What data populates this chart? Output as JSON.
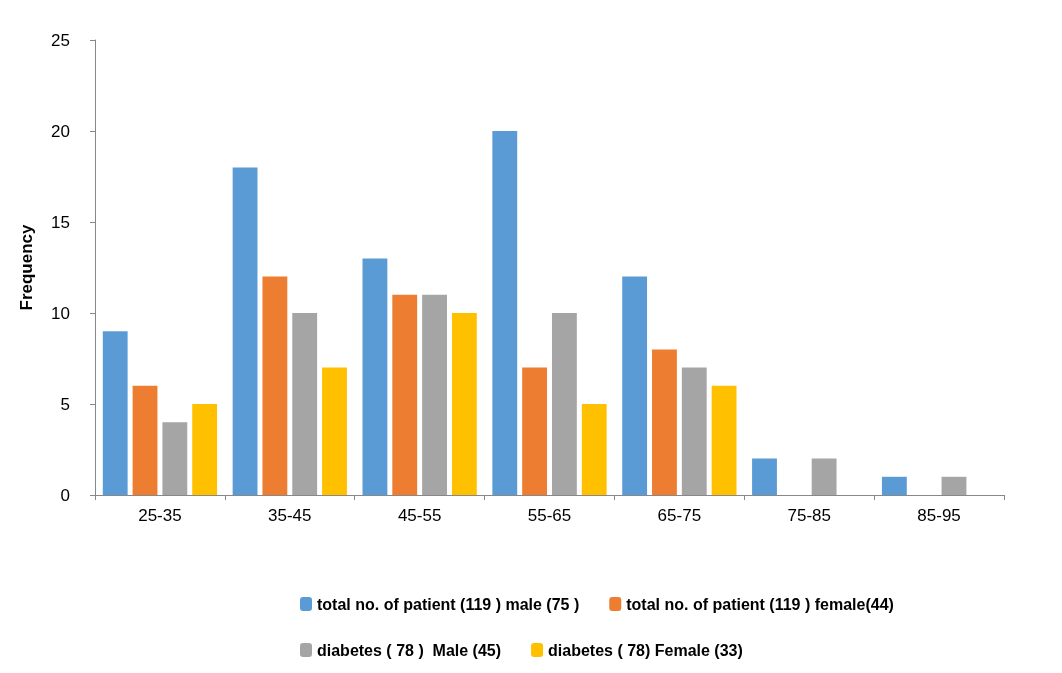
{
  "chart_data": {
    "type": "bar",
    "ylabel": "Frequency",
    "categories": [
      "25-35",
      "35-45",
      "45-55",
      "55-65",
      "65-75",
      "75-85",
      "85-95"
    ],
    "series": [
      {
        "name": "total no. of patient (119 ) male (75 )",
        "color": "#5b9bd5",
        "values": [
          9,
          18,
          13,
          20,
          12,
          2,
          1
        ]
      },
      {
        "name": "total no. of patient (119 ) female(44)",
        "color": "#ed7d31",
        "values": [
          6,
          12,
          11,
          7,
          8,
          0,
          0
        ]
      },
      {
        "name": "diabetes ( 78 )  Male (45)",
        "color": "#a5a5a5",
        "values": [
          4,
          10,
          11,
          10,
          7,
          2,
          1
        ]
      },
      {
        "name": "diabetes ( 78) Female (33)",
        "color": "#ffc000",
        "values": [
          5,
          7,
          10,
          5,
          6,
          0,
          0
        ]
      }
    ],
    "ylim": [
      0,
      25
    ],
    "yticks": [
      0,
      5,
      10,
      15,
      20,
      25
    ],
    "grid": false,
    "legend": "bottom"
  }
}
